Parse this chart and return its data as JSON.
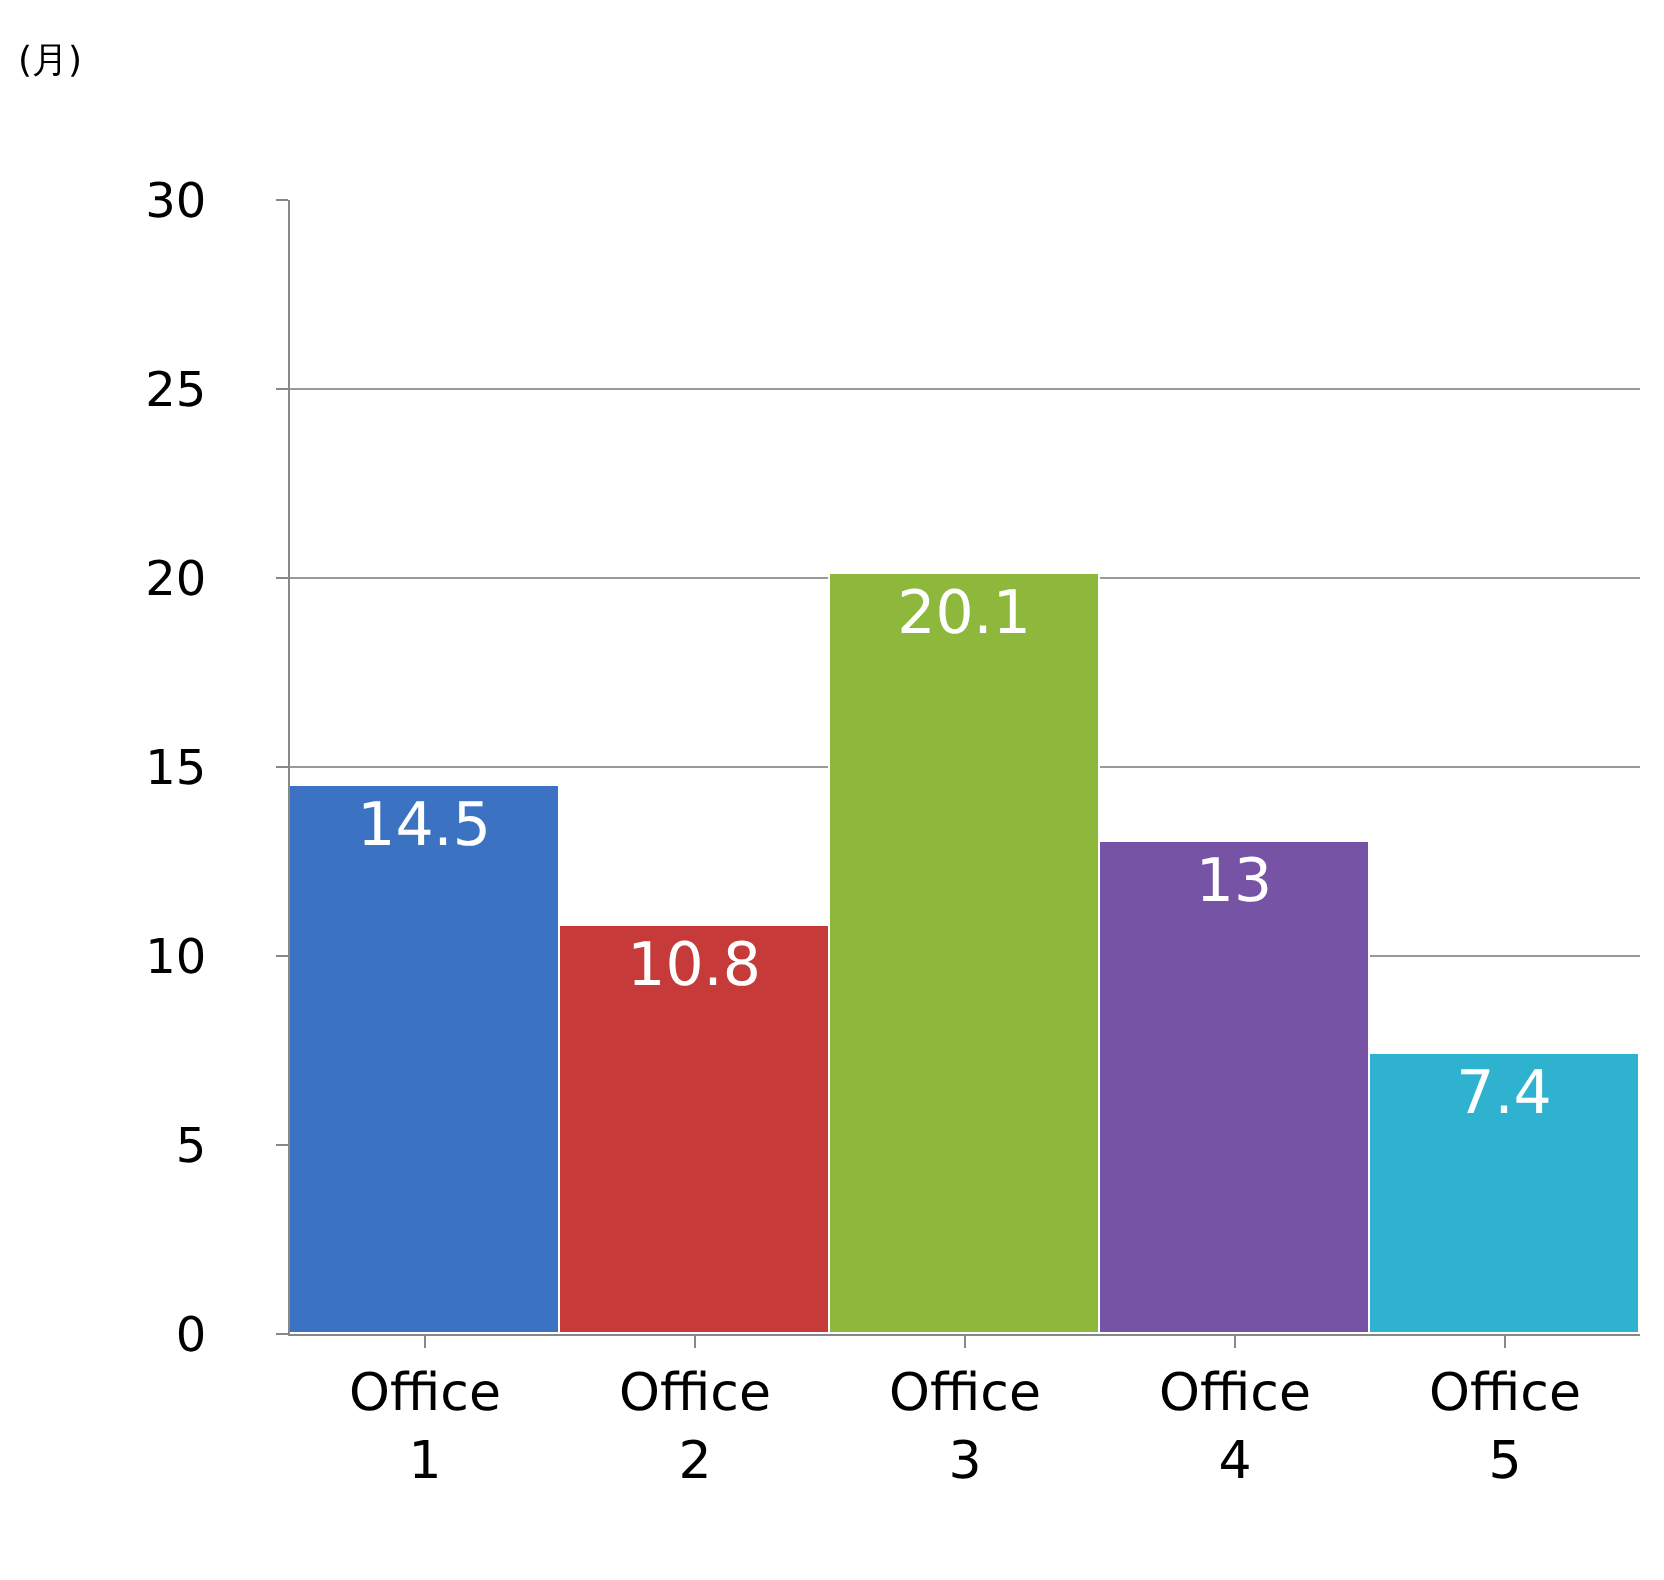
{
  "chart_data": {
    "type": "bar",
    "ylabel": "(月)",
    "categories": [
      "Office 1",
      "Office 2",
      "Office 3",
      "Office 4",
      "Office 5"
    ],
    "values": [
      14.5,
      10.8,
      20.1,
      13,
      7.4
    ],
    "colors": [
      "#3b72c2",
      "#c63a3a",
      "#8db83c",
      "#7753a6",
      "#2fb2cf"
    ],
    "ylim": [
      0,
      30
    ],
    "yticks": [
      0,
      5,
      10,
      15,
      20,
      25,
      30
    ],
    "grid": "y",
    "data_labels": true,
    "legend": false
  }
}
